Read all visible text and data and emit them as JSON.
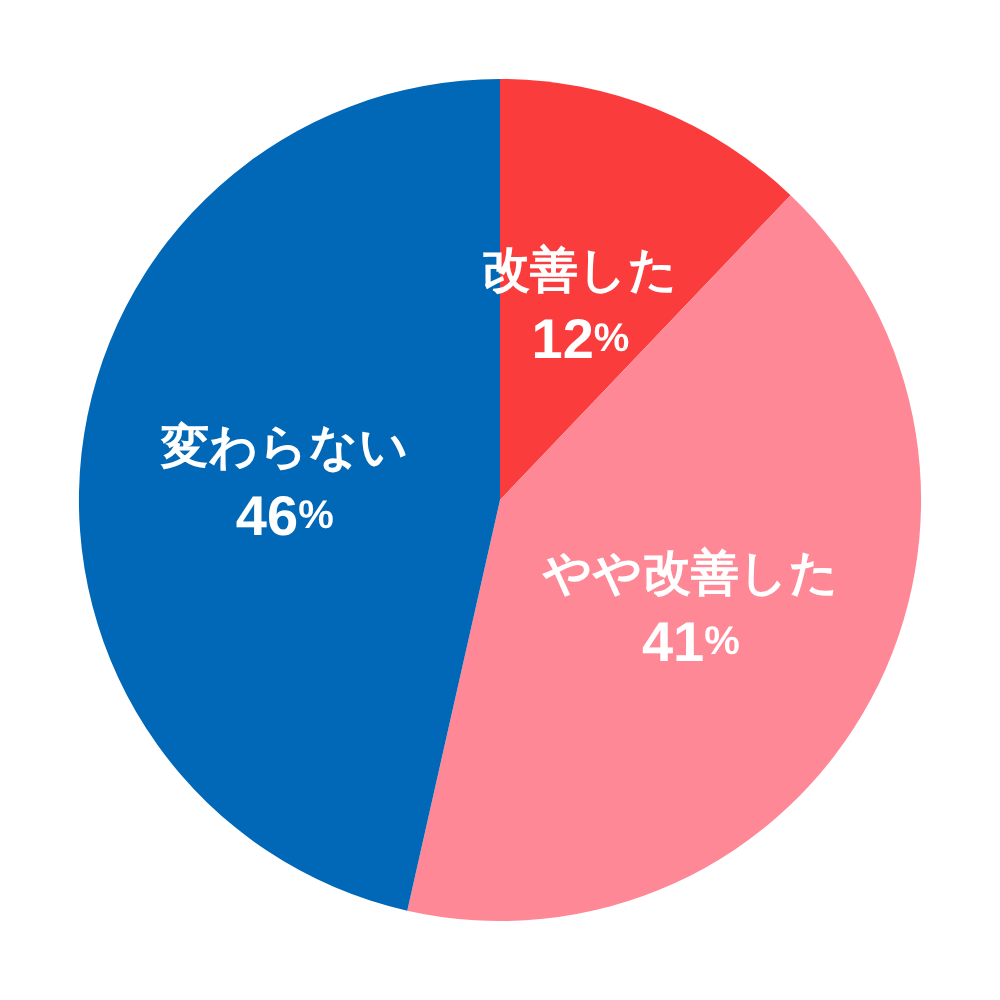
{
  "chart_data": {
    "type": "pie",
    "categories": [
      "改善した",
      "やや改善した",
      "変わらない"
    ],
    "values": [
      12,
      41,
      46
    ],
    "colors": [
      "#fa3c3c",
      "#ff8896",
      "#0068b7"
    ],
    "value_labels": [
      "12%",
      "41%",
      "46%"
    ],
    "legend": false
  }
}
